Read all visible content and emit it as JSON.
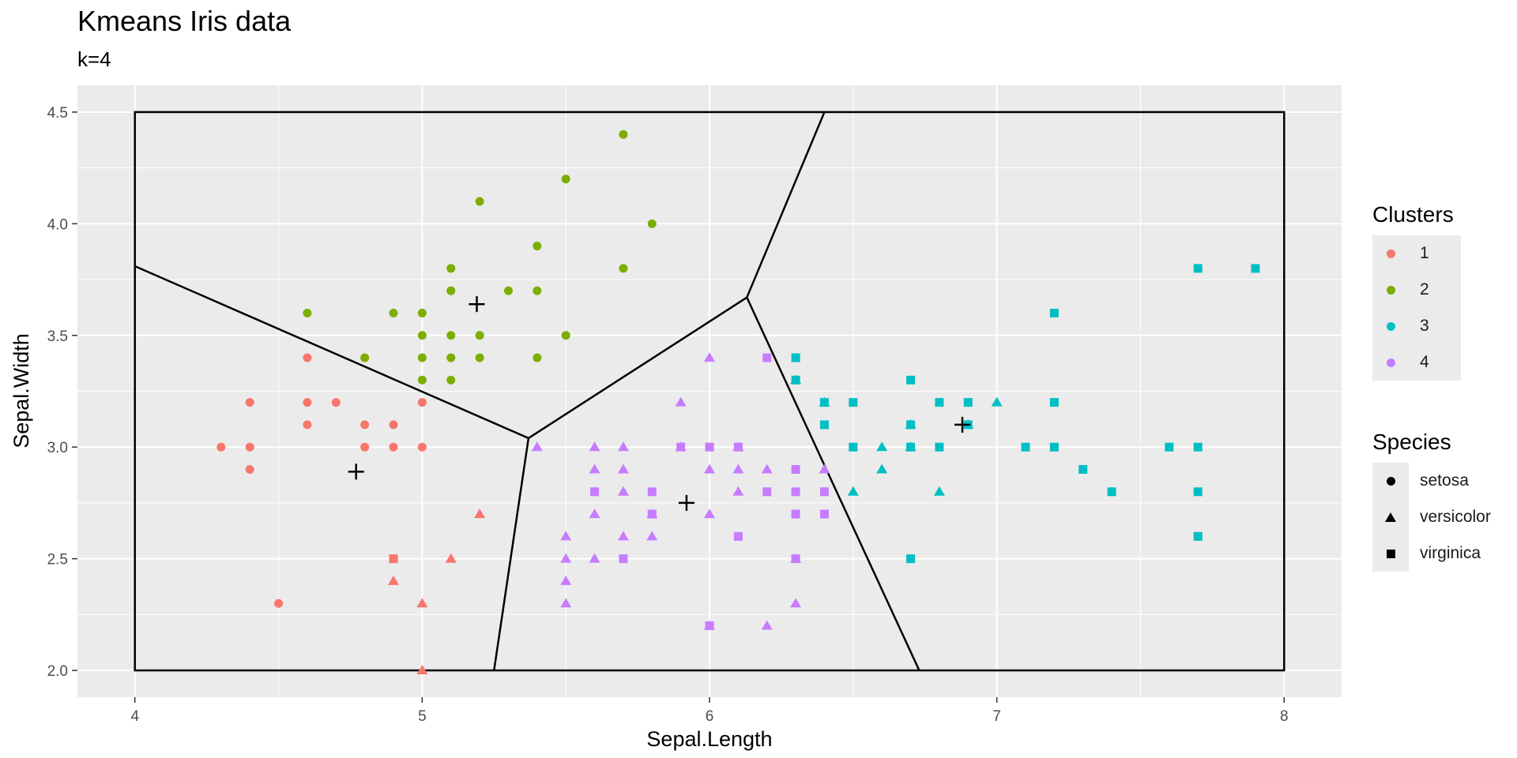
{
  "chart_data": {
    "type": "scatter",
    "title": "Kmeans Iris data",
    "subtitle": "k=4",
    "xlabel": "Sepal.Length",
    "ylabel": "Sepal.Width",
    "xlim": [
      3.8,
      8.2
    ],
    "ylim": [
      1.88,
      4.62
    ],
    "x_ticks": [
      "4",
      "5",
      "6",
      "7",
      "8"
    ],
    "y_ticks": [
      "2.0",
      "2.5",
      "3.0",
      "3.5",
      "4.0",
      "4.5"
    ],
    "grid": true,
    "cluster_colors": {
      "1": "#F8766D",
      "2": "#7CAE00",
      "3": "#00BFC4",
      "4": "#C77CFF"
    },
    "legend": {
      "placement": "right",
      "clusters": {
        "title": "Clusters",
        "items": [
          "1",
          "2",
          "3",
          "4"
        ]
      },
      "species": {
        "title": "Species",
        "items": [
          "setosa",
          "versicolor",
          "virginica"
        ]
      }
    },
    "bounding_box": {
      "x": [
        4,
        8
      ],
      "y": [
        2.0,
        4.5
      ]
    },
    "voronoi_vertices": [
      [
        5.37,
        3.04
      ],
      [
        6.13,
        3.67
      ]
    ],
    "voronoi_edges": [
      [
        [
          4.0,
          3.81
        ],
        [
          5.37,
          3.04
        ]
      ],
      [
        [
          5.37,
          3.04
        ],
        [
          5.25,
          2.0
        ]
      ],
      [
        [
          5.37,
          3.04
        ],
        [
          6.13,
          3.67
        ]
      ],
      [
        [
          6.13,
          3.67
        ],
        [
          6.4,
          4.5
        ]
      ],
      [
        [
          6.13,
          3.67
        ],
        [
          6.73,
          2.0
        ]
      ]
    ],
    "centers": [
      [
        4.77,
        2.89
      ],
      [
        5.19,
        3.64
      ],
      [
        6.88,
        3.1
      ],
      [
        5.92,
        2.75
      ]
    ],
    "series": [
      {
        "name": "1",
        "points": [
          [
            4.3,
            3.0,
            "setosa"
          ],
          [
            4.4,
            3.2,
            "setosa"
          ],
          [
            4.4,
            3.0,
            "setosa"
          ],
          [
            4.4,
            2.9,
            "setosa"
          ],
          [
            4.5,
            2.3,
            "setosa"
          ],
          [
            4.6,
            3.4,
            "setosa"
          ],
          [
            4.6,
            3.2,
            "setosa"
          ],
          [
            4.6,
            3.1,
            "setosa"
          ],
          [
            4.7,
            3.2,
            "setosa"
          ],
          [
            4.8,
            3.1,
            "setosa"
          ],
          [
            4.8,
            3.0,
            "setosa"
          ],
          [
            4.9,
            3.1,
            "setosa"
          ],
          [
            4.9,
            3.0,
            "setosa"
          ],
          [
            5.0,
            3.2,
            "setosa"
          ],
          [
            5.0,
            3.0,
            "setosa"
          ],
          [
            4.9,
            2.5,
            "virginica"
          ],
          [
            4.9,
            2.4,
            "versicolor"
          ],
          [
            5.0,
            2.3,
            "versicolor"
          ],
          [
            5.0,
            2.0,
            "versicolor"
          ],
          [
            5.1,
            2.5,
            "versicolor"
          ],
          [
            5.2,
            2.7,
            "versicolor"
          ]
        ]
      },
      {
        "name": "2",
        "points": [
          [
            4.6,
            3.6,
            "setosa"
          ],
          [
            4.8,
            3.4,
            "setosa"
          ],
          [
            4.9,
            3.6,
            "setosa"
          ],
          [
            5.0,
            3.6,
            "setosa"
          ],
          [
            5.0,
            3.5,
            "setosa"
          ],
          [
            5.0,
            3.4,
            "setosa"
          ],
          [
            5.0,
            3.3,
            "setosa"
          ],
          [
            5.1,
            3.8,
            "setosa"
          ],
          [
            5.1,
            3.7,
            "setosa"
          ],
          [
            5.1,
            3.5,
            "setosa"
          ],
          [
            5.1,
            3.4,
            "setosa"
          ],
          [
            5.1,
            3.3,
            "setosa"
          ],
          [
            5.2,
            4.1,
            "setosa"
          ],
          [
            5.2,
            3.5,
            "setosa"
          ],
          [
            5.2,
            3.4,
            "setosa"
          ],
          [
            5.3,
            3.7,
            "setosa"
          ],
          [
            5.4,
            3.9,
            "setosa"
          ],
          [
            5.4,
            3.7,
            "setosa"
          ],
          [
            5.4,
            3.4,
            "setosa"
          ],
          [
            5.5,
            4.2,
            "setosa"
          ],
          [
            5.5,
            3.5,
            "setosa"
          ],
          [
            5.7,
            4.4,
            "setosa"
          ],
          [
            5.7,
            3.8,
            "setosa"
          ],
          [
            5.8,
            4.0,
            "setosa"
          ]
        ]
      },
      {
        "name": "3",
        "points": [
          [
            6.3,
            3.4,
            "virginica"
          ],
          [
            6.3,
            3.3,
            "virginica"
          ],
          [
            6.4,
            3.2,
            "virginica"
          ],
          [
            6.4,
            3.1,
            "virginica"
          ],
          [
            6.5,
            3.2,
            "virginica"
          ],
          [
            6.5,
            3.0,
            "virginica"
          ],
          [
            6.7,
            3.3,
            "virginica"
          ],
          [
            6.7,
            3.1,
            "virginica"
          ],
          [
            6.7,
            3.0,
            "virginica"
          ],
          [
            6.7,
            2.5,
            "virginica"
          ],
          [
            6.8,
            3.2,
            "virginica"
          ],
          [
            6.8,
            3.0,
            "virginica"
          ],
          [
            6.9,
            3.2,
            "virginica"
          ],
          [
            6.9,
            3.1,
            "virginica"
          ],
          [
            7.1,
            3.0,
            "virginica"
          ],
          [
            7.2,
            3.6,
            "virginica"
          ],
          [
            7.2,
            3.2,
            "virginica"
          ],
          [
            7.2,
            3.0,
            "virginica"
          ],
          [
            7.3,
            2.9,
            "virginica"
          ],
          [
            7.4,
            2.8,
            "virginica"
          ],
          [
            7.6,
            3.0,
            "virginica"
          ],
          [
            7.7,
            3.8,
            "virginica"
          ],
          [
            7.7,
            3.0,
            "virginica"
          ],
          [
            7.7,
            2.8,
            "virginica"
          ],
          [
            7.7,
            2.6,
            "virginica"
          ],
          [
            7.9,
            3.8,
            "virginica"
          ],
          [
            6.3,
            3.3,
            "versicolor"
          ],
          [
            6.4,
            3.2,
            "versicolor"
          ],
          [
            6.5,
            2.8,
            "versicolor"
          ],
          [
            6.6,
            3.0,
            "versicolor"
          ],
          [
            6.6,
            2.9,
            "versicolor"
          ],
          [
            6.7,
            3.1,
            "versicolor"
          ],
          [
            6.7,
            3.0,
            "versicolor"
          ],
          [
            6.8,
            2.8,
            "versicolor"
          ],
          [
            6.9,
            3.1,
            "versicolor"
          ],
          [
            7.0,
            3.2,
            "versicolor"
          ]
        ]
      },
      {
        "name": "4",
        "points": [
          [
            5.4,
            3.0,
            "versicolor"
          ],
          [
            5.5,
            2.6,
            "versicolor"
          ],
          [
            5.5,
            2.5,
            "versicolor"
          ],
          [
            5.5,
            2.4,
            "versicolor"
          ],
          [
            5.5,
            2.3,
            "versicolor"
          ],
          [
            5.6,
            3.0,
            "versicolor"
          ],
          [
            5.6,
            2.9,
            "versicolor"
          ],
          [
            5.6,
            2.7,
            "versicolor"
          ],
          [
            5.6,
            2.5,
            "versicolor"
          ],
          [
            5.7,
            3.0,
            "versicolor"
          ],
          [
            5.7,
            2.9,
            "versicolor"
          ],
          [
            5.7,
            2.8,
            "versicolor"
          ],
          [
            5.7,
            2.6,
            "versicolor"
          ],
          [
            5.8,
            2.7,
            "versicolor"
          ],
          [
            5.8,
            2.6,
            "versicolor"
          ],
          [
            5.9,
            3.2,
            "versicolor"
          ],
          [
            5.9,
            3.0,
            "versicolor"
          ],
          [
            6.0,
            3.4,
            "versicolor"
          ],
          [
            6.0,
            2.9,
            "versicolor"
          ],
          [
            6.0,
            2.7,
            "versicolor"
          ],
          [
            6.0,
            2.2,
            "versicolor"
          ],
          [
            6.1,
            3.0,
            "versicolor"
          ],
          [
            6.1,
            2.9,
            "versicolor"
          ],
          [
            6.1,
            2.8,
            "versicolor"
          ],
          [
            6.2,
            2.9,
            "versicolor"
          ],
          [
            6.2,
            2.2,
            "versicolor"
          ],
          [
            6.3,
            2.5,
            "versicolor"
          ],
          [
            6.3,
            2.3,
            "versicolor"
          ],
          [
            6.4,
            2.9,
            "versicolor"
          ],
          [
            5.6,
            2.8,
            "virginica"
          ],
          [
            5.7,
            2.5,
            "virginica"
          ],
          [
            5.8,
            2.8,
            "virginica"
          ],
          [
            5.8,
            2.7,
            "virginica"
          ],
          [
            5.9,
            3.0,
            "virginica"
          ],
          [
            6.0,
            3.0,
            "virginica"
          ],
          [
            6.0,
            2.2,
            "virginica"
          ],
          [
            6.1,
            3.0,
            "virginica"
          ],
          [
            6.1,
            2.6,
            "virginica"
          ],
          [
            6.2,
            3.4,
            "virginica"
          ],
          [
            6.2,
            2.8,
            "virginica"
          ],
          [
            6.3,
            2.9,
            "virginica"
          ],
          [
            6.3,
            2.8,
            "virginica"
          ],
          [
            6.3,
            2.7,
            "virginica"
          ],
          [
            6.3,
            2.5,
            "virginica"
          ],
          [
            6.4,
            2.8,
            "virginica"
          ],
          [
            6.4,
            2.7,
            "virginica"
          ]
        ]
      }
    ]
  }
}
